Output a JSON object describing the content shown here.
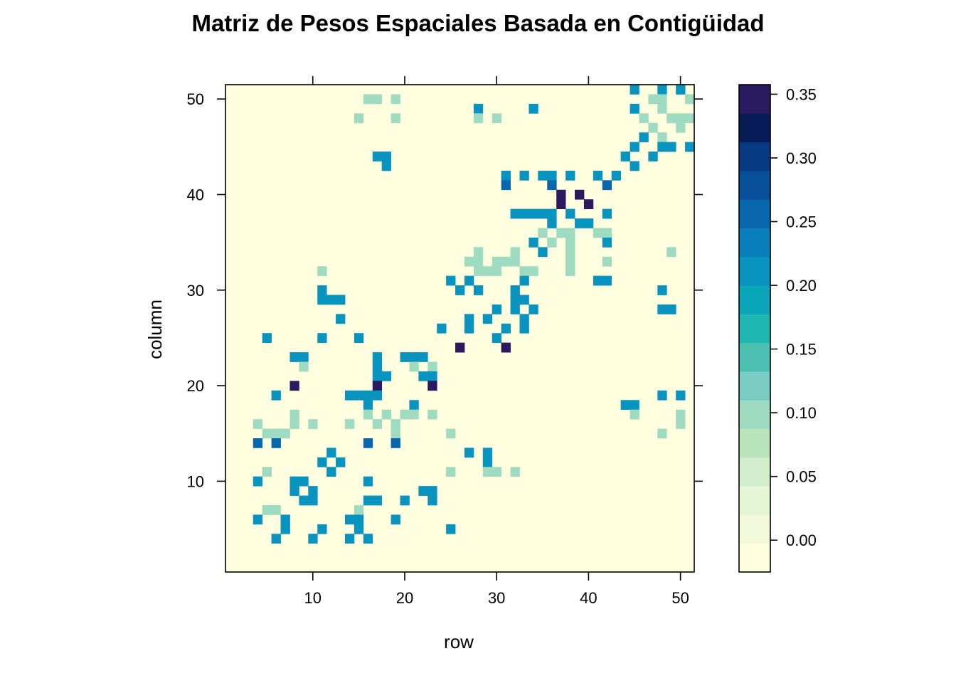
{
  "chart_data": {
    "type": "heatmap",
    "title": "Matriz de Pesos Espaciales Basada en Contigüidad",
    "xlabel": "row",
    "ylabel": "column",
    "xlim": [
      0.5,
      51.5
    ],
    "ylim": [
      0.5,
      51.5
    ],
    "x_ticks": [
      "10",
      "20",
      "30",
      "40",
      "50"
    ],
    "y_ticks": [
      "10",
      "20",
      "30",
      "40",
      "50"
    ],
    "colorbar": {
      "ticks": [
        "0.00",
        "0.05",
        "0.10",
        "0.15",
        "0.20",
        "0.25",
        "0.30",
        "0.35"
      ],
      "range": [
        -0.025,
        0.3575
      ],
      "colors": [
        "#ffffe0",
        "#f3fadb",
        "#e6f5d5",
        "#d3eecd",
        "#bae4bc",
        "#9fdbc0",
        "#7bccc4",
        "#4ec0b3",
        "#1fb5b0",
        "#0aa5b8",
        "#0894bf",
        "#0a7fbb",
        "#0867ac",
        "#084f9a",
        "#083a84",
        "#081d58",
        "#2a1a60"
      ]
    },
    "cells": [
      {
        "x": 45,
        "y": 51,
        "v": 0.2
      },
      {
        "x": 48,
        "y": 51,
        "v": 0.2
      },
      {
        "x": 50,
        "y": 51,
        "v": 0.2
      },
      {
        "x": 16,
        "y": 50,
        "v": 0.1
      },
      {
        "x": 17,
        "y": 50,
        "v": 0.1
      },
      {
        "x": 19,
        "y": 50,
        "v": 0.1
      },
      {
        "x": 47,
        "y": 50,
        "v": 0.1
      },
      {
        "x": 48,
        "y": 50,
        "v": 0.1
      },
      {
        "x": 51,
        "y": 50,
        "v": 0.1
      },
      {
        "x": 28,
        "y": 49,
        "v": 0.2
      },
      {
        "x": 34,
        "y": 49,
        "v": 0.2
      },
      {
        "x": 45,
        "y": 49,
        "v": 0.2
      },
      {
        "x": 48,
        "y": 49,
        "v": 0.1
      },
      {
        "x": 15,
        "y": 48,
        "v": 0.1
      },
      {
        "x": 19,
        "y": 48,
        "v": 0.1
      },
      {
        "x": 28,
        "y": 48,
        "v": 0.1
      },
      {
        "x": 30,
        "y": 48,
        "v": 0.1
      },
      {
        "x": 46,
        "y": 48,
        "v": 0.1
      },
      {
        "x": 49,
        "y": 48,
        "v": 0.1
      },
      {
        "x": 50,
        "y": 48,
        "v": 0.1
      },
      {
        "x": 51,
        "y": 48,
        "v": 0.1
      },
      {
        "x": 47,
        "y": 47,
        "v": 0.1
      },
      {
        "x": 50,
        "y": 47,
        "v": 0.1
      },
      {
        "x": 46,
        "y": 46,
        "v": 0.2
      },
      {
        "x": 48,
        "y": 46,
        "v": 0.1
      },
      {
        "x": 45,
        "y": 45,
        "v": 0.2
      },
      {
        "x": 48,
        "y": 45,
        "v": 0.2
      },
      {
        "x": 49,
        "y": 45,
        "v": 0.2
      },
      {
        "x": 51,
        "y": 45,
        "v": 0.2
      },
      {
        "x": 17,
        "y": 44,
        "v": 0.2
      },
      {
        "x": 18,
        "y": 44,
        "v": 0.2
      },
      {
        "x": 44,
        "y": 44,
        "v": 0.2
      },
      {
        "x": 47,
        "y": 44,
        "v": 0.2
      },
      {
        "x": 18,
        "y": 43,
        "v": 0.2
      },
      {
        "x": 45,
        "y": 43,
        "v": 0.2
      },
      {
        "x": 31,
        "y": 42,
        "v": 0.2
      },
      {
        "x": 33,
        "y": 42,
        "v": 0.2
      },
      {
        "x": 35,
        "y": 42,
        "v": 0.2
      },
      {
        "x": 36,
        "y": 42,
        "v": 0.2
      },
      {
        "x": 38,
        "y": 42,
        "v": 0.2
      },
      {
        "x": 41,
        "y": 42,
        "v": 0.2
      },
      {
        "x": 43,
        "y": 42,
        "v": 0.2
      },
      {
        "x": 31,
        "y": 41,
        "v": 0.25
      },
      {
        "x": 36,
        "y": 41,
        "v": 0.25
      },
      {
        "x": 42,
        "y": 41,
        "v": 0.25
      },
      {
        "x": 37,
        "y": 40,
        "v": 0.35
      },
      {
        "x": 39,
        "y": 40,
        "v": 0.35
      },
      {
        "x": 37,
        "y": 39,
        "v": 0.35
      },
      {
        "x": 40,
        "y": 39,
        "v": 0.35
      },
      {
        "x": 32,
        "y": 38,
        "v": 0.2
      },
      {
        "x": 33,
        "y": 38,
        "v": 0.2
      },
      {
        "x": 34,
        "y": 38,
        "v": 0.2
      },
      {
        "x": 35,
        "y": 38,
        "v": 0.2
      },
      {
        "x": 36,
        "y": 38,
        "v": 0.2
      },
      {
        "x": 38,
        "y": 38,
        "v": 0.2
      },
      {
        "x": 42,
        "y": 38,
        "v": 0.2
      },
      {
        "x": 36,
        "y": 37,
        "v": 0.2
      },
      {
        "x": 39,
        "y": 37,
        "v": 0.2
      },
      {
        "x": 40,
        "y": 37,
        "v": 0.2
      },
      {
        "x": 35,
        "y": 36,
        "v": 0.1
      },
      {
        "x": 37,
        "y": 36,
        "v": 0.1
      },
      {
        "x": 38,
        "y": 36,
        "v": 0.1
      },
      {
        "x": 41,
        "y": 36,
        "v": 0.1
      },
      {
        "x": 42,
        "y": 36,
        "v": 0.1
      },
      {
        "x": 34,
        "y": 35,
        "v": 0.2
      },
      {
        "x": 36,
        "y": 35,
        "v": 0.1
      },
      {
        "x": 38,
        "y": 35,
        "v": 0.1
      },
      {
        "x": 42,
        "y": 35,
        "v": 0.2
      },
      {
        "x": 28,
        "y": 34,
        "v": 0.1
      },
      {
        "x": 32,
        "y": 34,
        "v": 0.1
      },
      {
        "x": 35,
        "y": 34,
        "v": 0.2
      },
      {
        "x": 38,
        "y": 34,
        "v": 0.1
      },
      {
        "x": 49,
        "y": 34,
        "v": 0.1
      },
      {
        "x": 27,
        "y": 33,
        "v": 0.1
      },
      {
        "x": 28,
        "y": 33,
        "v": 0.1
      },
      {
        "x": 30,
        "y": 33,
        "v": 0.1
      },
      {
        "x": 31,
        "y": 33,
        "v": 0.1
      },
      {
        "x": 32,
        "y": 33,
        "v": 0.1
      },
      {
        "x": 38,
        "y": 33,
        "v": 0.1
      },
      {
        "x": 42,
        "y": 33,
        "v": 0.1
      },
      {
        "x": 11,
        "y": 32,
        "v": 0.1
      },
      {
        "x": 28,
        "y": 32,
        "v": 0.1
      },
      {
        "x": 29,
        "y": 32,
        "v": 0.1
      },
      {
        "x": 30,
        "y": 32,
        "v": 0.1
      },
      {
        "x": 33,
        "y": 32,
        "v": 0.1
      },
      {
        "x": 34,
        "y": 32,
        "v": 0.1
      },
      {
        "x": 38,
        "y": 32,
        "v": 0.1
      },
      {
        "x": 25,
        "y": 31,
        "v": 0.2
      },
      {
        "x": 27,
        "y": 31,
        "v": 0.2
      },
      {
        "x": 33,
        "y": 31,
        "v": 0.2
      },
      {
        "x": 41,
        "y": 31,
        "v": 0.2
      },
      {
        "x": 42,
        "y": 31,
        "v": 0.2
      },
      {
        "x": 11,
        "y": 30,
        "v": 0.2
      },
      {
        "x": 26,
        "y": 30,
        "v": 0.2
      },
      {
        "x": 28,
        "y": 30,
        "v": 0.2
      },
      {
        "x": 32,
        "y": 30,
        "v": 0.2
      },
      {
        "x": 48,
        "y": 30,
        "v": 0.2
      },
      {
        "x": 11,
        "y": 29,
        "v": 0.2
      },
      {
        "x": 12,
        "y": 29,
        "v": 0.2
      },
      {
        "x": 13,
        "y": 29,
        "v": 0.2
      },
      {
        "x": 32,
        "y": 29,
        "v": 0.2
      },
      {
        "x": 33,
        "y": 29,
        "v": 0.2
      },
      {
        "x": 30,
        "y": 28,
        "v": 0.2
      },
      {
        "x": 32,
        "y": 28,
        "v": 0.2
      },
      {
        "x": 34,
        "y": 28,
        "v": 0.2
      },
      {
        "x": 48,
        "y": 28,
        "v": 0.2
      },
      {
        "x": 49,
        "y": 28,
        "v": 0.2
      },
      {
        "x": 13,
        "y": 27,
        "v": 0.2
      },
      {
        "x": 27,
        "y": 27,
        "v": 0.2
      },
      {
        "x": 29,
        "y": 27,
        "v": 0.2
      },
      {
        "x": 33,
        "y": 27,
        "v": 0.2
      },
      {
        "x": 24,
        "y": 26,
        "v": 0.2
      },
      {
        "x": 27,
        "y": 26,
        "v": 0.2
      },
      {
        "x": 31,
        "y": 26,
        "v": 0.2
      },
      {
        "x": 33,
        "y": 26,
        "v": 0.2
      },
      {
        "x": 5,
        "y": 25,
        "v": 0.2
      },
      {
        "x": 11,
        "y": 25,
        "v": 0.2
      },
      {
        "x": 15,
        "y": 25,
        "v": 0.2
      },
      {
        "x": 30,
        "y": 25,
        "v": 0.2
      },
      {
        "x": 26,
        "y": 24,
        "v": 0.35
      },
      {
        "x": 31,
        "y": 24,
        "v": 0.35
      },
      {
        "x": 8,
        "y": 23,
        "v": 0.2
      },
      {
        "x": 9,
        "y": 23,
        "v": 0.2
      },
      {
        "x": 17,
        "y": 23,
        "v": 0.2
      },
      {
        "x": 20,
        "y": 23,
        "v": 0.2
      },
      {
        "x": 21,
        "y": 23,
        "v": 0.2
      },
      {
        "x": 22,
        "y": 23,
        "v": 0.2
      },
      {
        "x": 9,
        "y": 22,
        "v": 0.1
      },
      {
        "x": 17,
        "y": 22,
        "v": 0.2
      },
      {
        "x": 21,
        "y": 22,
        "v": 0.1
      },
      {
        "x": 23,
        "y": 22,
        "v": 0.1
      },
      {
        "x": 17,
        "y": 21,
        "v": 0.2
      },
      {
        "x": 18,
        "y": 21,
        "v": 0.2
      },
      {
        "x": 22,
        "y": 21,
        "v": 0.2
      },
      {
        "x": 23,
        "y": 21,
        "v": 0.2
      },
      {
        "x": 8,
        "y": 20,
        "v": 0.35
      },
      {
        "x": 17,
        "y": 20,
        "v": 0.35
      },
      {
        "x": 23,
        "y": 20,
        "v": 0.35
      },
      {
        "x": 6,
        "y": 19,
        "v": 0.2
      },
      {
        "x": 14,
        "y": 19,
        "v": 0.2
      },
      {
        "x": 15,
        "y": 19,
        "v": 0.2
      },
      {
        "x": 16,
        "y": 19,
        "v": 0.2
      },
      {
        "x": 17,
        "y": 19,
        "v": 0.2
      },
      {
        "x": 48,
        "y": 19,
        "v": 0.2
      },
      {
        "x": 50,
        "y": 19,
        "v": 0.2
      },
      {
        "x": 16,
        "y": 18,
        "v": 0.2
      },
      {
        "x": 21,
        "y": 18,
        "v": 0.2
      },
      {
        "x": 44,
        "y": 18,
        "v": 0.2
      },
      {
        "x": 45,
        "y": 18,
        "v": 0.2
      },
      {
        "x": 8,
        "y": 17,
        "v": 0.1
      },
      {
        "x": 16,
        "y": 17,
        "v": 0.1
      },
      {
        "x": 18,
        "y": 17,
        "v": 0.1
      },
      {
        "x": 20,
        "y": 17,
        "v": 0.1
      },
      {
        "x": 21,
        "y": 17,
        "v": 0.1
      },
      {
        "x": 23,
        "y": 17,
        "v": 0.1
      },
      {
        "x": 45,
        "y": 17,
        "v": 0.1
      },
      {
        "x": 50,
        "y": 17,
        "v": 0.1
      },
      {
        "x": 4,
        "y": 16,
        "v": 0.1
      },
      {
        "x": 8,
        "y": 16,
        "v": 0.1
      },
      {
        "x": 10,
        "y": 16,
        "v": 0.1
      },
      {
        "x": 14,
        "y": 16,
        "v": 0.1
      },
      {
        "x": 17,
        "y": 16,
        "v": 0.1
      },
      {
        "x": 19,
        "y": 16,
        "v": 0.1
      },
      {
        "x": 50,
        "y": 16,
        "v": 0.1
      },
      {
        "x": 5,
        "y": 15,
        "v": 0.1
      },
      {
        "x": 6,
        "y": 15,
        "v": 0.1
      },
      {
        "x": 7,
        "y": 15,
        "v": 0.1
      },
      {
        "x": 19,
        "y": 15,
        "v": 0.1
      },
      {
        "x": 25,
        "y": 15,
        "v": 0.1
      },
      {
        "x": 48,
        "y": 15,
        "v": 0.1
      },
      {
        "x": 4,
        "y": 14,
        "v": 0.25
      },
      {
        "x": 6,
        "y": 14,
        "v": 0.25
      },
      {
        "x": 16,
        "y": 14,
        "v": 0.25
      },
      {
        "x": 19,
        "y": 14,
        "v": 0.25
      },
      {
        "x": 12,
        "y": 13,
        "v": 0.2
      },
      {
        "x": 27,
        "y": 13,
        "v": 0.2
      },
      {
        "x": 29,
        "y": 13,
        "v": 0.2
      },
      {
        "x": 11,
        "y": 12,
        "v": 0.2
      },
      {
        "x": 13,
        "y": 12,
        "v": 0.2
      },
      {
        "x": 29,
        "y": 12,
        "v": 0.2
      },
      {
        "x": 5,
        "y": 11,
        "v": 0.1
      },
      {
        "x": 12,
        "y": 11,
        "v": 0.2
      },
      {
        "x": 25,
        "y": 11,
        "v": 0.1
      },
      {
        "x": 29,
        "y": 11,
        "v": 0.1
      },
      {
        "x": 30,
        "y": 11,
        "v": 0.1
      },
      {
        "x": 32,
        "y": 11,
        "v": 0.1
      },
      {
        "x": 4,
        "y": 10,
        "v": 0.2
      },
      {
        "x": 8,
        "y": 10,
        "v": 0.2
      },
      {
        "x": 9,
        "y": 10,
        "v": 0.2
      },
      {
        "x": 16,
        "y": 10,
        "v": 0.2
      },
      {
        "x": 8,
        "y": 9,
        "v": 0.2
      },
      {
        "x": 10,
        "y": 9,
        "v": 0.2
      },
      {
        "x": 22,
        "y": 9,
        "v": 0.2
      },
      {
        "x": 23,
        "y": 9,
        "v": 0.2
      },
      {
        "x": 9,
        "y": 8,
        "v": 0.2
      },
      {
        "x": 10,
        "y": 8,
        "v": 0.2
      },
      {
        "x": 16,
        "y": 8,
        "v": 0.2
      },
      {
        "x": 17,
        "y": 8,
        "v": 0.2
      },
      {
        "x": 20,
        "y": 8,
        "v": 0.2
      },
      {
        "x": 23,
        "y": 8,
        "v": 0.2
      },
      {
        "x": 5,
        "y": 7,
        "v": 0.1
      },
      {
        "x": 6,
        "y": 7,
        "v": 0.1
      },
      {
        "x": 15,
        "y": 7,
        "v": 0.1
      },
      {
        "x": 4,
        "y": 6,
        "v": 0.2
      },
      {
        "x": 7,
        "y": 6,
        "v": 0.2
      },
      {
        "x": 14,
        "y": 6,
        "v": 0.2
      },
      {
        "x": 15,
        "y": 6,
        "v": 0.2
      },
      {
        "x": 19,
        "y": 6,
        "v": 0.2
      },
      {
        "x": 7,
        "y": 5,
        "v": 0.2
      },
      {
        "x": 11,
        "y": 5,
        "v": 0.2
      },
      {
        "x": 15,
        "y": 5,
        "v": 0.2
      },
      {
        "x": 25,
        "y": 5,
        "v": 0.2
      },
      {
        "x": 6,
        "y": 4,
        "v": 0.2
      },
      {
        "x": 10,
        "y": 4,
        "v": 0.2
      },
      {
        "x": 14,
        "y": 4,
        "v": 0.2
      },
      {
        "x": 16,
        "y": 4,
        "v": 0.2
      }
    ]
  }
}
